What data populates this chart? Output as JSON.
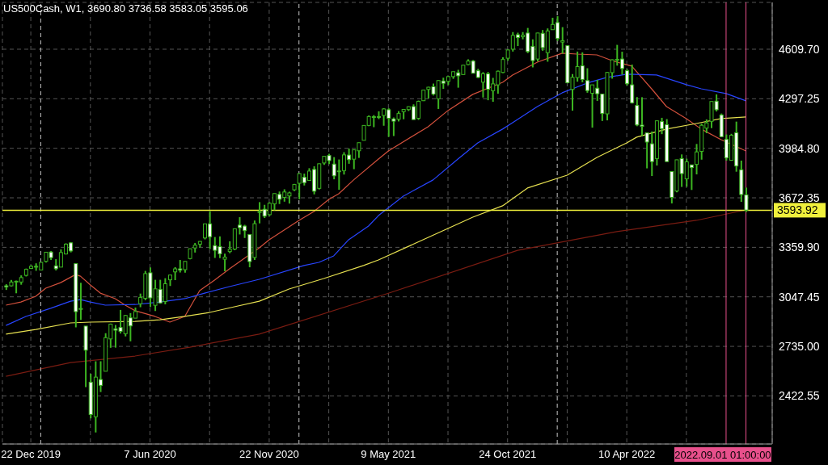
{
  "chart_data": {
    "type": "candlestick",
    "title": "US500Cash, W1, 3690.80 3736.58 3583.05 3595.06",
    "color": "#3cb521",
    "x": [
      "2019-11-17",
      "2019-11-24",
      "2019-12-01",
      "2019-12-08",
      "2019-12-15",
      "2019-12-22",
      "2019-12-29",
      "2020-01-05",
      "2020-01-12",
      "2020-01-19",
      "2020-01-26",
      "2020-02-02",
      "2020-02-09",
      "2020-02-16",
      "2020-02-23",
      "2020-03-01",
      "2020-03-08",
      "2020-03-15",
      "2020-03-22",
      "2020-03-29",
      "2020-04-05",
      "2020-04-12",
      "2020-04-19",
      "2020-04-26",
      "2020-05-03",
      "2020-05-10",
      "2020-05-17",
      "2020-05-24",
      "2020-05-31",
      "2020-06-07",
      "2020-06-14",
      "2020-06-21",
      "2020-06-28",
      "2020-07-05",
      "2020-07-12",
      "2020-07-19",
      "2020-07-26",
      "2020-08-02",
      "2020-08-09",
      "2020-08-16",
      "2020-08-23",
      "2020-08-30",
      "2020-09-06",
      "2020-09-13",
      "2020-09-20",
      "2020-09-27",
      "2020-10-04",
      "2020-10-11",
      "2020-10-18",
      "2020-10-25",
      "2020-11-01",
      "2020-11-08",
      "2020-11-15",
      "2020-11-22",
      "2020-11-29",
      "2020-12-06",
      "2020-12-13",
      "2020-12-20",
      "2020-12-27",
      "2021-01-03",
      "2021-01-10",
      "2021-01-17",
      "2021-01-24",
      "2021-01-31",
      "2021-02-07",
      "2021-02-14",
      "2021-02-21",
      "2021-02-28",
      "2021-03-07",
      "2021-03-14",
      "2021-03-21",
      "2021-03-28",
      "2021-04-04",
      "2021-04-11",
      "2021-04-18",
      "2021-04-25",
      "2021-05-02",
      "2021-05-09",
      "2021-05-16",
      "2021-05-23",
      "2021-05-30",
      "2021-06-06",
      "2021-06-13",
      "2021-06-20",
      "2021-06-27",
      "2021-07-04",
      "2021-07-11",
      "2021-07-18",
      "2021-07-25",
      "2021-08-01",
      "2021-08-08",
      "2021-08-15",
      "2021-08-22",
      "2021-08-29",
      "2021-09-05",
      "2021-09-12",
      "2021-09-19",
      "2021-09-26",
      "2021-10-03",
      "2021-10-10",
      "2021-10-17",
      "2021-10-24",
      "2021-10-31",
      "2021-11-07",
      "2021-11-14",
      "2021-11-21",
      "2021-11-28",
      "2021-12-05",
      "2021-12-12",
      "2021-12-19",
      "2021-12-26",
      "2022-01-02",
      "2022-01-09",
      "2022-01-16",
      "2022-01-23",
      "2022-01-30",
      "2022-02-06",
      "2022-02-13",
      "2022-02-20",
      "2022-02-27",
      "2022-03-06",
      "2022-03-13",
      "2022-03-20",
      "2022-03-27",
      "2022-04-03",
      "2022-04-10",
      "2022-04-17",
      "2022-04-24",
      "2022-05-01",
      "2022-05-08",
      "2022-05-15",
      "2022-05-22",
      "2022-05-29",
      "2022-06-05",
      "2022-06-12",
      "2022-06-19",
      "2022-06-26",
      "2022-07-03",
      "2022-07-10",
      "2022-07-17",
      "2022-07-24",
      "2022-07-31",
      "2022-08-07",
      "2022-08-14",
      "2022-08-21",
      "2022-08-28",
      "2022-09-04",
      "2022-09-11",
      "2022-09-18",
      "2022-09-25"
    ],
    "ohlc": [
      [
        3117,
        3127,
        3091,
        3110
      ],
      [
        3117,
        3154,
        3113,
        3141
      ],
      [
        3144,
        3150,
        3070,
        3146
      ],
      [
        3141,
        3183,
        3124,
        3169
      ],
      [
        3183,
        3226,
        3176,
        3221
      ],
      [
        3227,
        3247,
        3223,
        3240
      ],
      [
        3240,
        3259,
        3212,
        3235
      ],
      [
        3217,
        3267,
        3214,
        3265
      ],
      [
        3271,
        3329,
        3264,
        3329
      ],
      [
        3330,
        3337,
        3280,
        3295
      ],
      [
        3243,
        3285,
        3214,
        3225
      ],
      [
        3235,
        3347,
        3235,
        3327
      ],
      [
        3318,
        3385,
        3315,
        3380
      ],
      [
        3388,
        3393,
        3328,
        3337
      ],
      [
        3257,
        3259,
        2855,
        2954
      ],
      [
        2974,
        3136,
        2902,
        2972
      ],
      [
        2863,
        2863,
        2478,
        2711
      ],
      [
        2509,
        2562,
        2281,
        2305
      ],
      [
        2291,
        2641,
        2192,
        2541
      ],
      [
        2526,
        2641,
        2447,
        2489
      ],
      [
        2578,
        2818,
        2578,
        2790
      ],
      [
        2782,
        2879,
        2726,
        2875
      ],
      [
        2846,
        2870,
        2727,
        2837
      ],
      [
        2854,
        2965,
        2816,
        2830
      ],
      [
        2815,
        2934,
        2798,
        2930
      ],
      [
        2915,
        2945,
        2767,
        2864
      ],
      [
        2913,
        2980,
        2913,
        2955
      ],
      [
        3004,
        3068,
        2982,
        3044
      ],
      [
        3038,
        3211,
        3026,
        3194
      ],
      [
        3199,
        3233,
        2983,
        3041
      ],
      [
        2994,
        3155,
        2958,
        3098
      ],
      [
        3095,
        3155,
        3004,
        3009
      ],
      [
        3018,
        3165,
        3000,
        3130
      ],
      [
        3155,
        3185,
        3116,
        3185
      ],
      [
        3205,
        3235,
        3153,
        3224
      ],
      [
        3224,
        3280,
        3201,
        3216
      ],
      [
        3219,
        3272,
        3200,
        3271
      ],
      [
        3289,
        3352,
        3284,
        3351
      ],
      [
        3356,
        3387,
        3327,
        3373
      ],
      [
        3380,
        3399,
        3360,
        3397
      ],
      [
        3419,
        3509,
        3410,
        3508
      ],
      [
        3508,
        3588,
        3349,
        3427
      ],
      [
        3371,
        3425,
        3293,
        3341
      ],
      [
        3364,
        3429,
        3292,
        3319
      ],
      [
        3285,
        3320,
        3209,
        3298
      ],
      [
        3333,
        3398,
        3323,
        3348
      ],
      [
        3349,
        3479,
        3342,
        3477
      ],
      [
        3500,
        3550,
        3441,
        3484
      ],
      [
        3494,
        3502,
        3419,
        3465
      ],
      [
        3441,
        3441,
        3234,
        3270
      ],
      [
        3296,
        3529,
        3280,
        3509
      ],
      [
        3583,
        3645,
        3511,
        3585
      ],
      [
        3600,
        3628,
        3545,
        3557
      ],
      [
        3566,
        3644,
        3558,
        3638
      ],
      [
        3634,
        3699,
        3594,
        3699
      ],
      [
        3694,
        3712,
        3633,
        3663
      ],
      [
        3675,
        3726,
        3648,
        3709
      ],
      [
        3684,
        3711,
        3636,
        3703
      ],
      [
        3723,
        3760,
        3715,
        3756
      ],
      [
        3764,
        3827,
        3663,
        3825
      ],
      [
        3802,
        3825,
        3750,
        3768
      ],
      [
        3782,
        3859,
        3779,
        3841
      ],
      [
        3851,
        3871,
        3694,
        3714
      ],
      [
        3732,
        3889,
        3725,
        3887
      ],
      [
        3892,
        3935,
        3880,
        3934
      ],
      [
        3939,
        3950,
        3885,
        3907
      ],
      [
        3885,
        3929,
        3789,
        3811
      ],
      [
        3842,
        3914,
        3723,
        3842
      ],
      [
        3844,
        3960,
        3819,
        3943
      ],
      [
        3942,
        3983,
        3887,
        3913
      ],
      [
        3916,
        3978,
        3853,
        3975
      ],
      [
        3969,
        4021,
        3924,
        4020
      ],
      [
        4035,
        4130,
        4035,
        4129
      ],
      [
        4129,
        4192,
        4124,
        4185
      ],
      [
        4184,
        4194,
        4118,
        4180
      ],
      [
        4185,
        4218,
        4169,
        4181
      ],
      [
        4192,
        4238,
        4127,
        4233
      ],
      [
        4228,
        4237,
        4057,
        4174
      ],
      [
        4170,
        4179,
        4062,
        4156
      ],
      [
        4168,
        4219,
        4154,
        4204
      ],
      [
        4216,
        4233,
        4168,
        4230
      ],
      [
        4229,
        4249,
        4220,
        4247
      ],
      [
        4248,
        4262,
        4165,
        4166
      ],
      [
        4174,
        4286,
        4164,
        4281
      ],
      [
        4285,
        4355,
        4283,
        4352
      ],
      [
        4356,
        4372,
        4299,
        4370
      ],
      [
        4373,
        4393,
        4318,
        4327
      ],
      [
        4297,
        4415,
        4233,
        4412
      ],
      [
        4409,
        4430,
        4360,
        4395
      ],
      [
        4407,
        4440,
        4384,
        4437
      ],
      [
        4437,
        4469,
        4423,
        4468
      ],
      [
        4461,
        4480,
        4367,
        4442
      ],
      [
        4450,
        4510,
        4448,
        4509
      ],
      [
        4513,
        4546,
        4509,
        4535
      ],
      [
        4535,
        4542,
        4457,
        4458
      ],
      [
        4474,
        4486,
        4427,
        4432
      ],
      [
        4402,
        4465,
        4305,
        4455
      ],
      [
        4454,
        4466,
        4288,
        4357
      ],
      [
        4348,
        4429,
        4278,
        4391
      ],
      [
        4385,
        4475,
        4329,
        4471
      ],
      [
        4463,
        4559,
        4459,
        4545
      ],
      [
        4553,
        4608,
        4537,
        4605
      ],
      [
        4610,
        4718,
        4595,
        4697
      ],
      [
        4701,
        4714,
        4630,
        4683
      ],
      [
        4689,
        4718,
        4672,
        4698
      ],
      [
        4712,
        4744,
        4585,
        4595
      ],
      [
        4628,
        4672,
        4495,
        4538
      ],
      [
        4548,
        4713,
        4533,
        4712
      ],
      [
        4710,
        4731,
        4600,
        4620
      ],
      [
        4588,
        4741,
        4531,
        4725
      ],
      [
        4733,
        4808,
        4733,
        4766
      ],
      [
        4778,
        4818,
        4662,
        4677
      ],
      [
        4655,
        4749,
        4582,
        4663
      ],
      [
        4632,
        4632,
        4395,
        4398
      ],
      [
        4356,
        4453,
        4222,
        4432
      ],
      [
        4431,
        4595,
        4405,
        4500
      ],
      [
        4505,
        4590,
        4401,
        4419
      ],
      [
        4412,
        4490,
        4335,
        4349
      ],
      [
        4332,
        4385,
        4115,
        4385
      ],
      [
        4364,
        4416,
        4284,
        4329
      ],
      [
        4327,
        4327,
        4157,
        4204
      ],
      [
        4202,
        4466,
        4161,
        4463
      ],
      [
        4462,
        4546,
        4424,
        4543
      ],
      [
        4541,
        4637,
        4506,
        4546
      ],
      [
        4548,
        4594,
        4450,
        4488
      ],
      [
        4474,
        4484,
        4381,
        4392
      ],
      [
        4385,
        4513,
        4267,
        4272
      ],
      [
        4255,
        4308,
        4124,
        4132
      ],
      [
        4131,
        4307,
        4062,
        4123
      ],
      [
        4082,
        4082,
        3858,
        4024
      ],
      [
        4013,
        4091,
        3810,
        3901
      ],
      [
        3920,
        4159,
        3876,
        4158
      ],
      [
        4153,
        4177,
        4074,
        4109
      ],
      [
        4134,
        4169,
        3900,
        3901
      ],
      [
        3838,
        3838,
        3637,
        3675
      ],
      [
        3715,
        3913,
        3707,
        3912
      ],
      [
        3920,
        3946,
        3741,
        3825
      ],
      [
        3792,
        3919,
        3742,
        3899
      ],
      [
        3880,
        3880,
        3722,
        3863
      ],
      [
        3883,
        4012,
        3820,
        3962
      ],
      [
        3965,
        4140,
        3913,
        4130
      ],
      [
        4112,
        4167,
        4080,
        4145
      ],
      [
        4155,
        4280,
        4112,
        4280
      ],
      [
        4282,
        4325,
        4217,
        4228
      ],
      [
        4195,
        4204,
        4057,
        4058
      ],
      [
        4041,
        4072,
        3907,
        3924
      ],
      [
        3909,
        4076,
        3906,
        4067
      ],
      [
        4083,
        4153,
        3837,
        3873
      ],
      [
        3849,
        3907,
        3647,
        3693
      ],
      [
        3690.8,
        3736.58,
        3583.05,
        3595.06
      ]
    ],
    "series": [
      {
        "type": "line",
        "color": "#d2503c",
        "x": [
          "2019-11-17",
          "2019-12-08",
          "2019-12-29",
          "2020-01-12",
          "2020-02-02",
          "2020-02-23",
          "2020-03-01",
          "2020-03-15",
          "2020-03-29",
          "2020-04-19",
          "2020-05-03",
          "2020-05-17",
          "2020-06-14",
          "2020-07-05",
          "2020-07-26",
          "2020-08-16",
          "2020-09-06",
          "2020-09-27",
          "2020-10-18",
          "2020-11-08",
          "2020-11-22",
          "2021-01-03",
          "2021-01-24",
          "2021-02-14",
          "2021-02-28",
          "2021-03-21",
          "2021-04-25",
          "2021-05-09",
          "2021-07-04",
          "2021-08-01",
          "2021-09-05",
          "2021-10-17",
          "2021-10-31",
          "2021-12-05",
          "2022-01-09",
          "2022-01-30",
          "2022-02-27",
          "2022-03-20",
          "2022-04-17",
          "2022-05-15",
          "2022-06-05",
          "2022-07-03",
          "2022-07-24",
          "2022-08-21",
          "2022-09-25"
        ],
        "values": [
          2995,
          3015,
          3051,
          3102,
          3137,
          3188,
          3178,
          3122,
          3071,
          3036,
          2995,
          2960,
          2924,
          2888,
          2924,
          3087,
          3153,
          3224,
          3290,
          3357,
          3408,
          3530,
          3586,
          3662,
          3698,
          3785,
          3917,
          3968,
          4121,
          4223,
          4325,
          4401,
          4447,
          4528,
          4585,
          4579,
          4574,
          4538,
          4503,
          4360,
          4248,
          4172,
          4106,
          4039,
          3968
        ]
      },
      {
        "type": "line",
        "color": "#2845ff",
        "x": [
          "2019-11-17",
          "2019-12-15",
          "2020-01-19",
          "2020-02-16",
          "2020-03-01",
          "2020-03-15",
          "2020-04-05",
          "2020-05-17",
          "2020-06-21",
          "2020-07-26",
          "2020-08-23",
          "2020-09-27",
          "2020-11-08",
          "2021-01-10",
          "2021-01-31",
          "2021-02-21",
          "2021-03-14",
          "2021-04-11",
          "2021-04-25",
          "2021-05-30",
          "2021-07-11",
          "2021-08-15",
          "2021-09-12",
          "2021-10-17",
          "2021-10-31",
          "2021-12-05",
          "2022-01-09",
          "2022-02-13",
          "2022-03-13",
          "2022-04-10",
          "2022-05-22",
          "2022-07-03",
          "2022-07-24",
          "2022-08-28",
          "2022-09-25"
        ],
        "values": [
          2867,
          2924,
          2975,
          3020,
          3030,
          3015,
          2995,
          2999,
          3015,
          3036,
          3071,
          3112,
          3158,
          3245,
          3265,
          3306,
          3408,
          3494,
          3560,
          3683,
          3785,
          3917,
          4019,
          4106,
          4146,
          4248,
          4335,
          4396,
          4432,
          4452,
          4447,
          4386,
          4360,
          4330,
          4284
        ]
      },
      {
        "type": "line",
        "color": "#e6e050",
        "x": [
          "2019-11-17",
          "2019-12-29",
          "2020-02-16",
          "2020-03-15",
          "2020-05-17",
          "2020-06-21",
          "2020-07-26",
          "2020-08-30",
          "2020-10-04",
          "2020-11-08",
          "2020-12-20",
          "2021-02-07",
          "2021-04-04",
          "2021-04-25",
          "2021-09-05",
          "2021-10-17",
          "2021-11-21",
          "2022-01-16",
          "2022-02-27",
          "2022-04-10",
          "2022-04-24",
          "2022-06-05",
          "2022-07-17",
          "2022-08-21",
          "2022-09-25"
        ],
        "values": [
          2812,
          2842,
          2883,
          2888,
          2893,
          2903,
          2924,
          2949,
          2985,
          3020,
          3097,
          3163,
          3245,
          3280,
          3550,
          3622,
          3734,
          3815,
          3927,
          4019,
          4055,
          4106,
          4141,
          4172,
          4182
        ]
      },
      {
        "type": "line",
        "color": "#7a1c12",
        "x": [
          "2019-11-17",
          "2020-02-16",
          "2020-05-17",
          "2020-08-02",
          "2020-11-08",
          "2021-05-09",
          "2021-11-07",
          "2022-03-27",
          "2022-07-17",
          "2022-09-25"
        ],
        "values": [
          2546,
          2633,
          2674,
          2730,
          2812,
          3070,
          3341,
          3459,
          3530,
          3596
        ]
      }
    ],
    "xlim": [
      "2019-11-12",
      "2022-11-01"
    ],
    "xticks": [
      {
        "value": "2019-12-22",
        "label": "22 Dec 2019"
      },
      {
        "value": "2020-03-15",
        "label": null
      },
      {
        "value": "2020-06-07",
        "label": "7 Jun 2020"
      },
      {
        "value": "2020-08-30",
        "label": null
      },
      {
        "value": "2020-11-22",
        "label": "22 Nov 2020"
      },
      {
        "value": "2021-02-14",
        "label": null
      },
      {
        "value": "2021-05-09",
        "label": "9 May 2021"
      },
      {
        "value": "2021-08-01",
        "label": null
      },
      {
        "value": "2021-10-24",
        "label": "24 Oct 2021"
      },
      {
        "value": "2022-01-16",
        "label": null
      },
      {
        "value": "2022-04-10",
        "label": "10 Apr 2022"
      },
      {
        "value": "2022-07-03",
        "label": null
      }
    ],
    "ylim": [
      2119,
      4905
    ],
    "yticks": [
      {
        "value": 2422.55,
        "label": "2422.55"
      },
      {
        "value": 2735,
        "label": "2735.00"
      },
      {
        "value": 3047.45,
        "label": "3047.45"
      },
      {
        "value": 3359.9,
        "label": "3359.90"
      },
      {
        "value": 3672.35,
        "label": "3672.35"
      },
      {
        "value": 3984.8,
        "label": "3984.80"
      },
      {
        "value": 4297.25,
        "label": "4297.25"
      },
      {
        "value": 4609.7,
        "label": "4609.70"
      }
    ],
    "grid": true,
    "ref_lines": [
      {
        "axis": "y",
        "value": 3593.92,
        "label": "3593.92",
        "color": "#f0f03c"
      },
      {
        "axis": "x",
        "value": "2022-08-28",
        "label": "2022.09.01 01:00:00",
        "color": "#e8508c"
      },
      {
        "axis": "x",
        "value": "2022-09-25",
        "color": "#e8508c"
      },
      {
        "axis": "x",
        "value": "2020-01-05",
        "color": "#c8c8c8",
        "line_style": "dashed"
      },
      {
        "axis": "x",
        "value": "2021-01-03",
        "color": "#c8c8c8",
        "line_style": "dashed"
      },
      {
        "axis": "x",
        "value": "2022-01-02",
        "color": "#c8c8c8",
        "line_style": "dashed"
      }
    ]
  }
}
